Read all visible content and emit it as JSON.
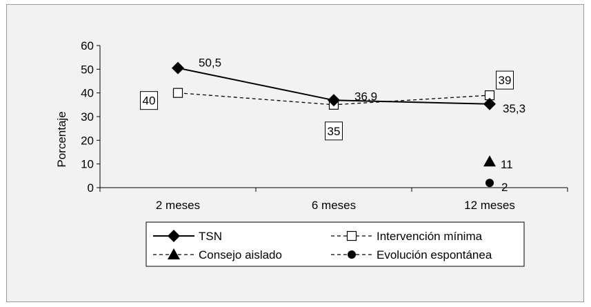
{
  "chart_data": {
    "type": "line",
    "categories": [
      "2 meses",
      "6 meses",
      "12 meses"
    ],
    "ylabel": "Porcentaje",
    "ylim": [
      0,
      60
    ],
    "yticks": [
      "0",
      "10",
      "20",
      "30",
      "40",
      "50",
      "60"
    ],
    "grid": false,
    "legend_position": "bottom",
    "series": [
      {
        "name": "TSN",
        "values": [
          50.5,
          36.9,
          35.3
        ],
        "labels": [
          "50,5",
          "36,9",
          "35,3"
        ],
        "marker": "diamond",
        "line": "solid",
        "color": "#000000"
      },
      {
        "name": "Intervención mínima",
        "values": [
          40,
          35,
          39
        ],
        "labels": [
          "40",
          "35",
          "39"
        ],
        "marker": "square-open",
        "line": "dashed",
        "color": "#000000"
      },
      {
        "name": "Consejo aislado",
        "values": [
          null,
          null,
          11
        ],
        "labels": [
          null,
          null,
          "11"
        ],
        "marker": "triangle",
        "line": "dashed",
        "color": "#000000"
      },
      {
        "name": "Evolución espontánea",
        "values": [
          null,
          null,
          2
        ],
        "labels": [
          null,
          null,
          "2"
        ],
        "marker": "circle",
        "line": "dashed",
        "color": "#000000"
      }
    ]
  }
}
